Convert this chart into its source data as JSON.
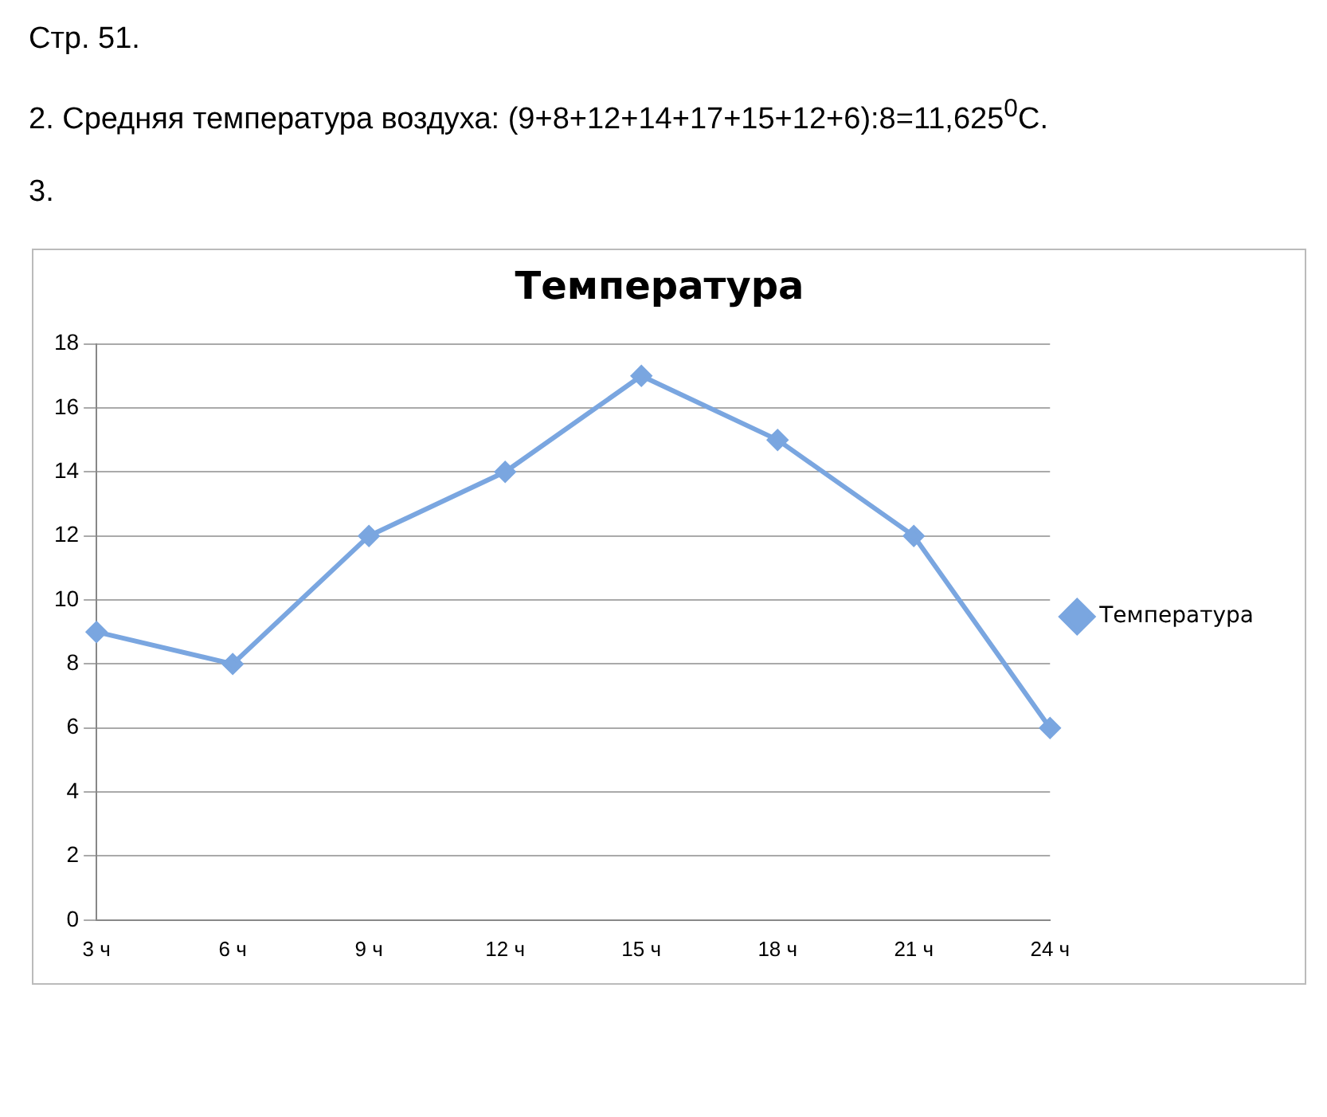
{
  "chart_data": {
    "type": "line",
    "title": "Температура",
    "annotations": [
      "Стр. 51.",
      "2. Средняя температура воздуха: (9+8+12+14+17+15+12+6):8=11,625$^{0}$С.",
      "3."
    ],
    "categories": [
      "3 ч",
      "6 ч",
      "9 ч",
      "12 ч",
      "15 ч",
      "18 ч",
      "21 ч",
      "24 ч"
    ],
    "series": [
      {
        "name": "Температура",
        "color": "#7aa6e0",
        "values": [
          9,
          8,
          12,
          14,
          17,
          15,
          12,
          6
        ]
      }
    ],
    "ylim": [
      0,
      18
    ],
    "yticks": [
      0,
      2,
      4,
      6,
      8,
      10,
      12,
      14,
      16,
      18
    ],
    "grid": "y",
    "legend": "right",
    "marker": "diamond",
    "line_style": "solid"
  }
}
